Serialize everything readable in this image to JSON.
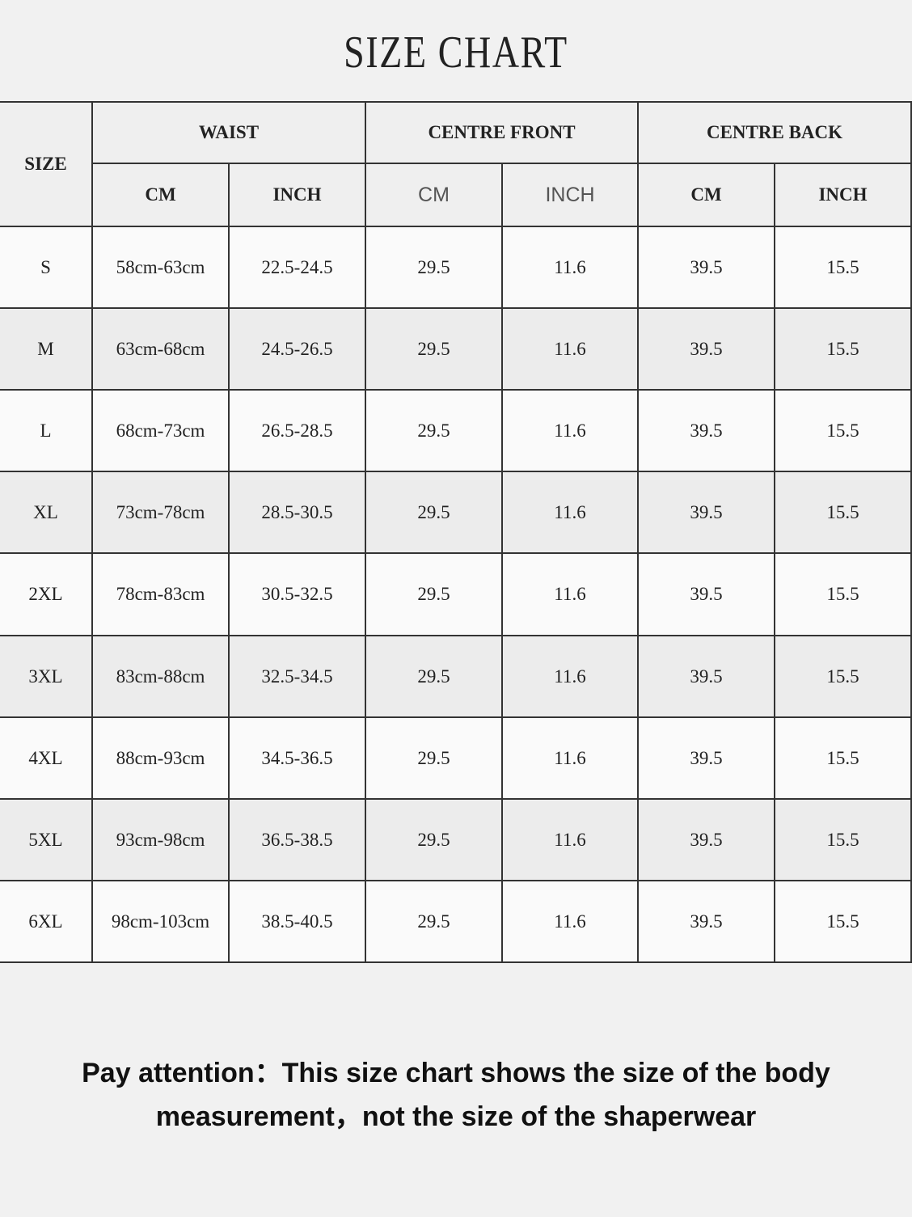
{
  "title": "SIZE CHART",
  "table": {
    "size_header": "SIZE",
    "groups": [
      "WAIST",
      "CENTRE FRONT",
      "CENTRE BACK"
    ],
    "units": [
      "CM",
      "INCH",
      "CM",
      "INCH",
      "CM",
      "INCH"
    ],
    "rows": [
      [
        "S",
        "58cm-63cm",
        "22.5-24.5",
        "29.5",
        "11.6",
        "39.5",
        "15.5"
      ],
      [
        "M",
        "63cm-68cm",
        "24.5-26.5",
        "29.5",
        "11.6",
        "39.5",
        "15.5"
      ],
      [
        "L",
        "68cm-73cm",
        "26.5-28.5",
        "29.5",
        "11.6",
        "39.5",
        "15.5"
      ],
      [
        "XL",
        "73cm-78cm",
        "28.5-30.5",
        "29.5",
        "11.6",
        "39.5",
        "15.5"
      ],
      [
        "2XL",
        "78cm-83cm",
        "30.5-32.5",
        "29.5",
        "11.6",
        "39.5",
        "15.5"
      ],
      [
        "3XL",
        "83cm-88cm",
        "32.5-34.5",
        "29.5",
        "11.6",
        "39.5",
        "15.5"
      ],
      [
        "4XL",
        "88cm-93cm",
        "34.5-36.5",
        "29.5",
        "11.6",
        "39.5",
        "15.5"
      ],
      [
        "5XL",
        "93cm-98cm",
        "36.5-38.5",
        "29.5",
        "11.6",
        "39.5",
        "15.5"
      ],
      [
        "6XL",
        "98cm-103cm",
        "38.5-40.5",
        "29.5",
        "11.6",
        "39.5",
        "15.5"
      ]
    ]
  },
  "note": {
    "lines": [
      "Pay attention：This size chart shows the size of the body",
      "measurement，not the size of the shaperwear"
    ]
  }
}
